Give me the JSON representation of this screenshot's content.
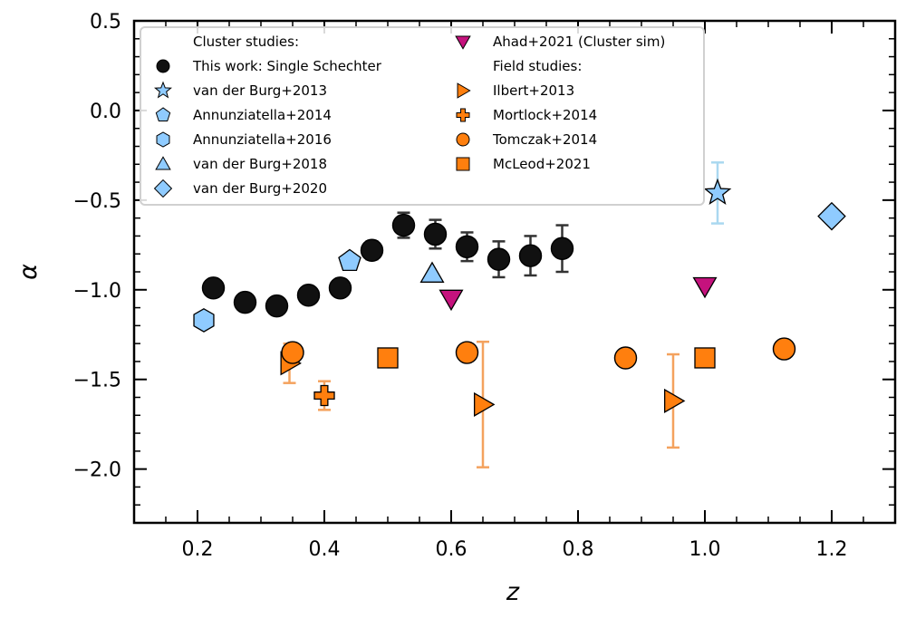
{
  "chart_data": {
    "type": "scatter",
    "xlabel": "z",
    "ylabel": "α",
    "xlim": [
      0.1,
      1.3
    ],
    "ylim": [
      -2.3,
      0.5
    ],
    "xticks": [
      0.2,
      0.4,
      0.6,
      0.8,
      1.0,
      1.2
    ],
    "xtick_labels": [
      "0.2",
      "0.4",
      "0.6",
      "0.8",
      "1.0",
      "1.2"
    ],
    "yticks": [
      -2.0,
      -1.5,
      -1.0,
      -0.5,
      0.0,
      0.5
    ],
    "ytick_labels": [
      "−2.0",
      "−1.5",
      "−1.0",
      "−0.5",
      "0.0",
      "0.5"
    ],
    "legend_position": "upper-left",
    "legend_headers": [
      "Cluster studies:",
      "Field studies:"
    ],
    "colors": {
      "this_work": "#111111",
      "cluster_lit": "#8fcbff",
      "cluster_sim": "#c5127d",
      "field": "#ff7f0e",
      "field_err": "#f4a25e",
      "cluster_err": "#aad8f0"
    },
    "series": [
      {
        "name": "This work: Single Schechter",
        "marker": "circle",
        "color": "#111111",
        "points": [
          {
            "x": 0.225,
            "y": -0.99,
            "err": 0.04
          },
          {
            "x": 0.275,
            "y": -1.07,
            "err": 0.04
          },
          {
            "x": 0.325,
            "y": -1.09,
            "err": 0.04
          },
          {
            "x": 0.375,
            "y": -1.03,
            "err": 0.04
          },
          {
            "x": 0.425,
            "y": -0.99,
            "err": 0.04
          },
          {
            "x": 0.475,
            "y": -0.78,
            "err": 0.05
          },
          {
            "x": 0.525,
            "y": -0.64,
            "err": 0.07
          },
          {
            "x": 0.575,
            "y": -0.69,
            "err": 0.08
          },
          {
            "x": 0.625,
            "y": -0.76,
            "err": 0.08
          },
          {
            "x": 0.675,
            "y": -0.83,
            "err": 0.1
          },
          {
            "x": 0.725,
            "y": -0.81,
            "err": 0.11
          },
          {
            "x": 0.775,
            "y": -0.77,
            "err": 0.13
          }
        ]
      },
      {
        "name": "van der Burg+2013",
        "marker": "star",
        "color": "#8fcbff",
        "points": [
          {
            "x": 1.02,
            "y": -0.46,
            "err": 0.17
          }
        ]
      },
      {
        "name": "Annunziatella+2014",
        "marker": "pentagon",
        "color": "#8fcbff",
        "points": [
          {
            "x": 0.44,
            "y": -0.84
          }
        ]
      },
      {
        "name": "Annunziatella+2016",
        "marker": "hexagon",
        "color": "#8fcbff",
        "points": [
          {
            "x": 0.21,
            "y": -1.17
          }
        ]
      },
      {
        "name": "van der Burg+2018",
        "marker": "triangle-up",
        "color": "#8fcbff",
        "points": [
          {
            "x": 0.57,
            "y": -0.91
          }
        ]
      },
      {
        "name": "van der Burg+2020",
        "marker": "diamond",
        "color": "#8fcbff",
        "points": [
          {
            "x": 1.2,
            "y": -0.59
          }
        ]
      },
      {
        "name": "Ahad+2021 (Cluster sim)",
        "marker": "triangle-down",
        "color": "#c5127d",
        "points": [
          {
            "x": 0.6,
            "y": -1.05
          },
          {
            "x": 1.0,
            "y": -0.98
          }
        ]
      },
      {
        "name": "Ilbert+2013",
        "marker": "triangle-right",
        "color": "#ff7f0e",
        "points": [
          {
            "x": 0.345,
            "y": -1.41,
            "err": 0.11
          },
          {
            "x": 0.65,
            "y": -1.64,
            "err": 0.35
          },
          {
            "x": 0.95,
            "y": -1.62,
            "err": 0.26
          }
        ]
      },
      {
        "name": "Mortlock+2014",
        "marker": "plus",
        "color": "#ff7f0e",
        "points": [
          {
            "x": 0.4,
            "y": -1.59,
            "err": 0.08
          }
        ]
      },
      {
        "name": "Tomczak+2014",
        "marker": "circle",
        "color": "#ff7f0e",
        "points": [
          {
            "x": 0.35,
            "y": -1.35
          },
          {
            "x": 0.625,
            "y": -1.35
          },
          {
            "x": 0.875,
            "y": -1.38
          },
          {
            "x": 1.125,
            "y": -1.33
          }
        ]
      },
      {
        "name": "McLeod+2021",
        "marker": "square",
        "color": "#ff7f0e",
        "points": [
          {
            "x": 0.5,
            "y": -1.38
          },
          {
            "x": 1.0,
            "y": -1.38
          }
        ]
      }
    ],
    "legend_items": [
      {
        "label": "Cluster studies:",
        "marker": "none",
        "color": "#ffffff",
        "col": 0,
        "row": 0
      },
      {
        "label": "This work: Single Schechter",
        "marker": "circle",
        "color": "#111111",
        "col": 0,
        "row": 1
      },
      {
        "label": "van der Burg+2013",
        "marker": "star",
        "color": "#8fcbff",
        "col": 0,
        "row": 2
      },
      {
        "label": "Annunziatella+2014",
        "marker": "pentagon",
        "color": "#8fcbff",
        "col": 0,
        "row": 3
      },
      {
        "label": "Annunziatella+2016",
        "marker": "hexagon",
        "color": "#8fcbff",
        "col": 0,
        "row": 4
      },
      {
        "label": "van der Burg+2018",
        "marker": "triangle-up",
        "color": "#8fcbff",
        "col": 0,
        "row": 5
      },
      {
        "label": "van der Burg+2020",
        "marker": "diamond",
        "color": "#8fcbff",
        "col": 0,
        "row": 6
      },
      {
        "label": "Ahad+2021 (Cluster sim)",
        "marker": "triangle-down",
        "color": "#c5127d",
        "col": 1,
        "row": 0
      },
      {
        "label": "Field studies:",
        "marker": "none",
        "color": "#ffffff",
        "col": 1,
        "row": 1
      },
      {
        "label": "Ilbert+2013",
        "marker": "triangle-right",
        "color": "#ff7f0e",
        "col": 1,
        "row": 2
      },
      {
        "label": "Mortlock+2014",
        "marker": "plus",
        "color": "#ff7f0e",
        "col": 1,
        "row": 3
      },
      {
        "label": "Tomczak+2014",
        "marker": "circle",
        "color": "#ff7f0e",
        "col": 1,
        "row": 4
      },
      {
        "label": "McLeod+2021",
        "marker": "square",
        "color": "#ff7f0e",
        "col": 1,
        "row": 5
      }
    ]
  }
}
